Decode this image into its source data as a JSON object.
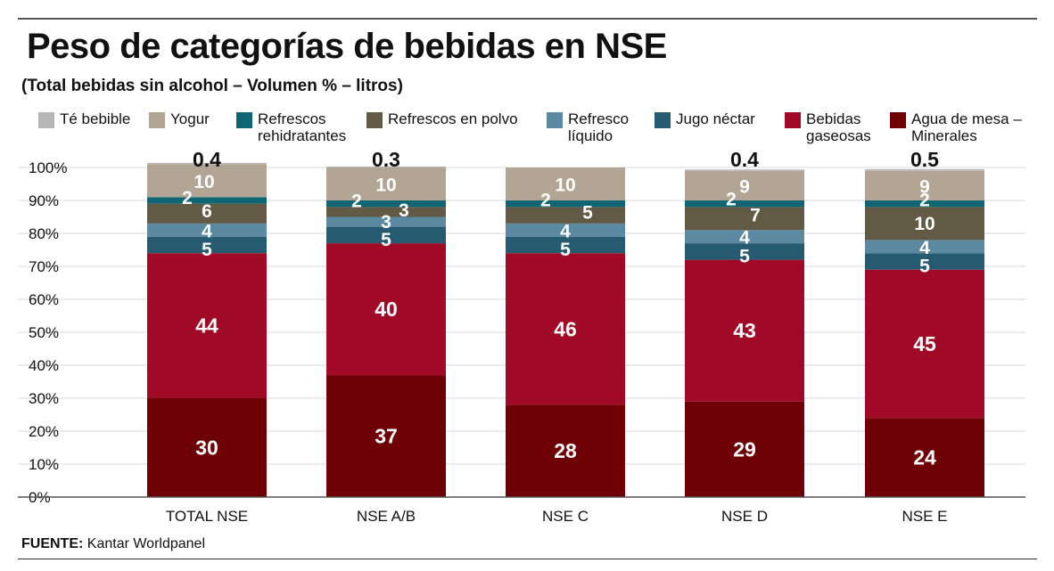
{
  "title": "Peso de categorías de bebidas en NSE",
  "subtitle": "(Total bebidas sin alcohol – Volumen % – litros)",
  "source_label": "FUENTE:",
  "source_text": " Kantar Worldpanel",
  "chart_data": {
    "type": "bar",
    "stacked": true,
    "title": "Peso de categorías de bebidas en NSE",
    "ylabel": "",
    "xlabel": "",
    "ylim": [
      0,
      100
    ],
    "y_ticks": [
      "0%",
      "10%",
      "20%",
      "30%",
      "40%",
      "50%",
      "60%",
      "70%",
      "80%",
      "90%",
      "100%"
    ],
    "grid": true,
    "legend_position": "top",
    "categories": [
      "TOTAL NSE",
      "NSE A/B",
      "NSE C",
      "NSE D",
      "NSE E"
    ],
    "series": [
      {
        "name": "Agua de mesa – Minerales",
        "legend_label": "Agua de mesa –\nMinerales",
        "color": "#6e0005",
        "values": [
          30,
          37,
          28,
          29,
          24
        ],
        "labels": [
          "30",
          "37",
          "28",
          "29",
          "24"
        ]
      },
      {
        "name": "Bebidas gaseosas",
        "legend_label": "Bebidas\ngaseosas",
        "color": "#a00a26",
        "values": [
          44,
          40,
          46,
          43,
          45
        ],
        "labels": [
          "44",
          "40",
          "46",
          "43",
          "45"
        ]
      },
      {
        "name": "Jugo néctar",
        "legend_label": "Jugo néctar",
        "color": "#265a70",
        "values": [
          5,
          5,
          5,
          5,
          5
        ],
        "labels": [
          "5",
          "5",
          "5",
          "5",
          "5"
        ]
      },
      {
        "name": "Refresco líquido",
        "legend_label": "Refresco\nlíquido",
        "color": "#5a89a1",
        "values": [
          4,
          3,
          4,
          4,
          4
        ],
        "labels": [
          "4",
          "3",
          "4",
          "4",
          "4"
        ]
      },
      {
        "name": "Refrescos en polvo",
        "legend_label": "Refrescos en polvo",
        "color": "#635a46",
        "values": [
          6,
          3,
          5,
          7,
          10
        ],
        "labels": [
          "6",
          "3",
          "5",
          "7",
          "10"
        ]
      },
      {
        "name": "Refrescos rehidratantes",
        "legend_label": "Refrescos\nrehidratantes",
        "color": "#0f6672",
        "values": [
          2,
          2,
          2,
          2,
          2
        ],
        "labels": [
          "2",
          "2",
          "2",
          "2",
          "2"
        ]
      },
      {
        "name": "Yogur",
        "legend_label": "Yogur",
        "color": "#b2a593",
        "values": [
          10,
          10,
          10,
          9,
          9
        ],
        "labels": [
          "10",
          "10",
          "10",
          "9",
          "9"
        ]
      },
      {
        "name": "Té bebible",
        "legend_label": "Té bebible",
        "color": "#b7b7b7",
        "values": [
          0.4,
          0.3,
          0,
          0.4,
          0.5
        ],
        "labels": [
          "0.4",
          "0.3",
          "",
          "0.4",
          "0.5"
        ]
      }
    ]
  }
}
